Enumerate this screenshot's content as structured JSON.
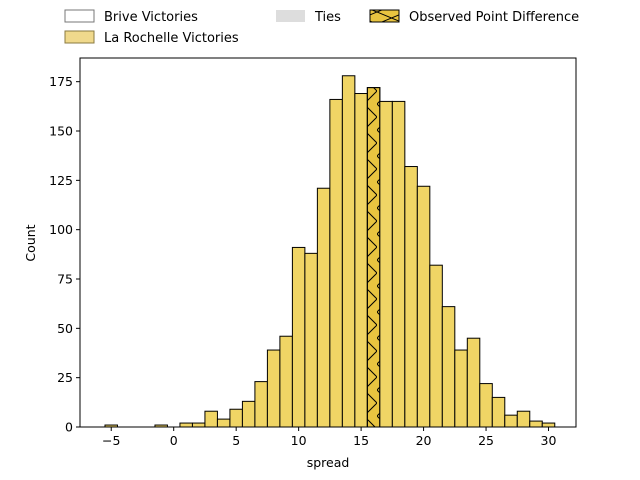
{
  "chart_data": {
    "type": "bar",
    "title": "",
    "xlabel": "spread",
    "ylabel": "Count",
    "xlim": [
      -7.5,
      32.2
    ],
    "ylim": [
      0,
      187
    ],
    "xticks": [
      -5,
      0,
      5,
      10,
      15,
      20,
      25,
      30
    ],
    "yticks": [
      0,
      25,
      50,
      75,
      100,
      125,
      150,
      175
    ],
    "bin_width": 1.0,
    "grid": false,
    "legend_placement": "top, above plot (3 columns)",
    "legend": [
      {
        "label": "Brive Victories",
        "style": "outline"
      },
      {
        "label": "La Rochelle Victories",
        "style": "gold-fill"
      },
      {
        "label": "Ties",
        "style": "gray-fill"
      },
      {
        "label": "Observed Point Difference",
        "style": "hatched"
      }
    ],
    "series": [
      {
        "name": "La Rochelle Victories",
        "bins": [
          {
            "x0": -5.5,
            "x1": -4.5,
            "count": 1
          },
          {
            "x0": -1.5,
            "x1": -0.5,
            "count": 1
          },
          {
            "x0": 0.5,
            "x1": 1.5,
            "count": 2
          },
          {
            "x0": 1.5,
            "x1": 2.5,
            "count": 2
          },
          {
            "x0": 2.5,
            "x1": 3.5,
            "count": 8
          },
          {
            "x0": 3.5,
            "x1": 4.5,
            "count": 4
          },
          {
            "x0": 4.5,
            "x1": 5.5,
            "count": 9
          },
          {
            "x0": 5.5,
            "x1": 6.5,
            "count": 13
          },
          {
            "x0": 6.5,
            "x1": 7.5,
            "count": 23
          },
          {
            "x0": 7.5,
            "x1": 8.5,
            "count": 39
          },
          {
            "x0": 8.5,
            "x1": 9.5,
            "count": 46
          },
          {
            "x0": 9.5,
            "x1": 10.5,
            "count": 91
          },
          {
            "x0": 10.5,
            "x1": 11.5,
            "count": 88
          },
          {
            "x0": 11.5,
            "x1": 12.5,
            "count": 121
          },
          {
            "x0": 12.5,
            "x1": 13.5,
            "count": 166
          },
          {
            "x0": 13.5,
            "x1": 14.5,
            "count": 178
          },
          {
            "x0": 14.5,
            "x1": 15.5,
            "count": 169
          },
          {
            "x0": 15.5,
            "x1": 16.5,
            "count": 172,
            "observed": true
          },
          {
            "x0": 16.5,
            "x1": 17.5,
            "count": 165
          },
          {
            "x0": 17.5,
            "x1": 18.5,
            "count": 165
          },
          {
            "x0": 18.5,
            "x1": 19.5,
            "count": 132
          },
          {
            "x0": 19.5,
            "x1": 20.5,
            "count": 122
          },
          {
            "x0": 20.5,
            "x1": 21.5,
            "count": 82
          },
          {
            "x0": 21.5,
            "x1": 22.5,
            "count": 61
          },
          {
            "x0": 22.5,
            "x1": 23.5,
            "count": 39
          },
          {
            "x0": 23.5,
            "x1": 24.5,
            "count": 45
          },
          {
            "x0": 24.5,
            "x1": 25.5,
            "count": 22
          },
          {
            "x0": 25.5,
            "x1": 26.5,
            "count": 15
          },
          {
            "x0": 26.5,
            "x1": 27.5,
            "count": 6
          },
          {
            "x0": 27.5,
            "x1": 28.5,
            "count": 8
          },
          {
            "x0": 28.5,
            "x1": 29.5,
            "count": 3
          },
          {
            "x0": 29.5,
            "x1": 30.5,
            "count": 2
          }
        ]
      }
    ],
    "colors": {
      "bar_fill": "#f0d565",
      "bar_edge": "#000000",
      "legend_gold": "#f0d98c",
      "legend_gold_edge": "#8a7a40",
      "ties_gray": "#dddddd",
      "outline_edge": "#777777",
      "observed_fill": "#e8c440"
    }
  }
}
